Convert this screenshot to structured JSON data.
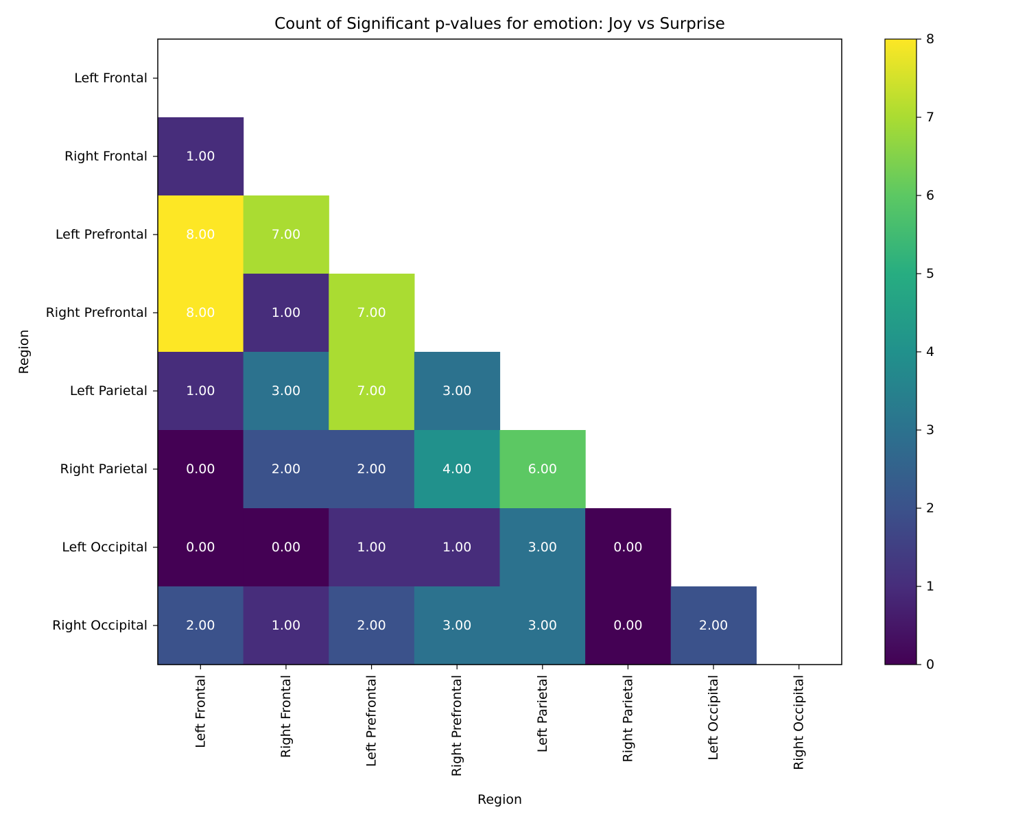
{
  "chart_data": {
    "type": "heatmap",
    "title": "Count of Significant p-values for emotion: Joy vs Surprise",
    "xlabel": "Region",
    "ylabel": "Region",
    "x_categories": [
      "Left Frontal",
      "Right Frontal",
      "Left Prefrontal",
      "Right Prefrontal",
      "Left Parietal",
      "Right Parietal",
      "Left Occipital",
      "Right Occipital"
    ],
    "y_categories": [
      "Left Frontal",
      "Right Frontal",
      "Left Prefrontal",
      "Right Prefrontal",
      "Left Parietal",
      "Right Parietal",
      "Left Occipital",
      "Right Occipital"
    ],
    "values": [
      [
        null,
        null,
        null,
        null,
        null,
        null,
        null,
        null
      ],
      [
        1,
        null,
        null,
        null,
        null,
        null,
        null,
        null
      ],
      [
        8,
        7,
        null,
        null,
        null,
        null,
        null,
        null
      ],
      [
        8,
        1,
        7,
        null,
        null,
        null,
        null,
        null
      ],
      [
        1,
        3,
        7,
        3,
        null,
        null,
        null,
        null
      ],
      [
        0,
        2,
        2,
        4,
        6,
        null,
        null,
        null
      ],
      [
        0,
        0,
        1,
        1,
        3,
        0,
        null,
        null
      ],
      [
        2,
        1,
        2,
        3,
        3,
        0,
        2,
        null
      ]
    ],
    "value_labels": [
      [
        null,
        null,
        null,
        null,
        null,
        null,
        null,
        null
      ],
      [
        "1.00",
        null,
        null,
        null,
        null,
        null,
        null,
        null
      ],
      [
        "8.00",
        "7.00",
        null,
        null,
        null,
        null,
        null,
        null
      ],
      [
        "8.00",
        "1.00",
        "7.00",
        null,
        null,
        null,
        null,
        null
      ],
      [
        "1.00",
        "3.00",
        "7.00",
        "3.00",
        null,
        null,
        null,
        null
      ],
      [
        "0.00",
        "2.00",
        "2.00",
        "4.00",
        "6.00",
        null,
        null,
        null
      ],
      [
        "0.00",
        "0.00",
        "1.00",
        "1.00",
        "3.00",
        "0.00",
        null,
        null
      ],
      [
        "2.00",
        "1.00",
        "2.00",
        "3.00",
        "3.00",
        "0.00",
        "2.00",
        null
      ]
    ],
    "colorbar": {
      "range": [
        0,
        8
      ],
      "ticks": [
        "0",
        "1",
        "2",
        "3",
        "4",
        "5",
        "6",
        "7",
        "8"
      ],
      "colormap": "viridis"
    },
    "grid": false
  }
}
